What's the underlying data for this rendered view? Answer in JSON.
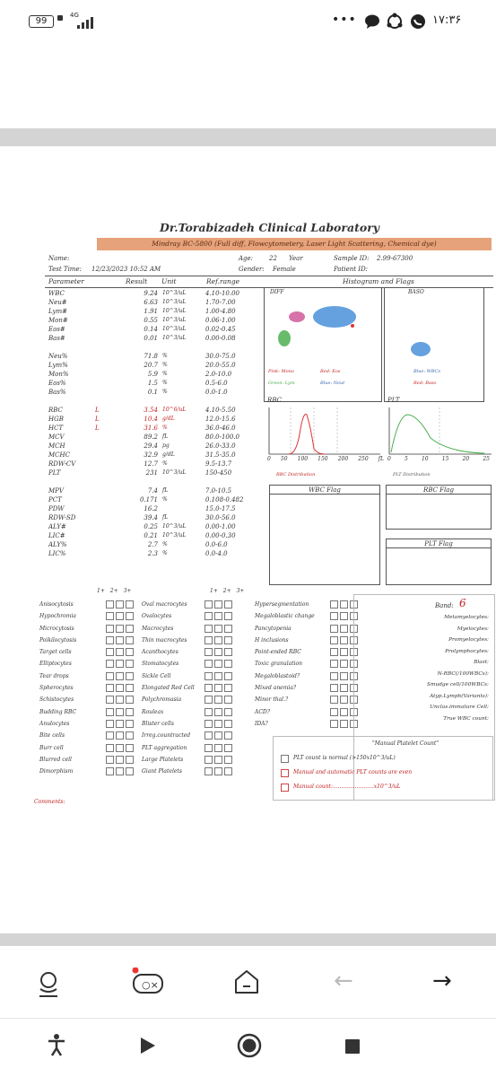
{
  "status_bar": {
    "battery": "99",
    "network": "4G",
    "dots": "•••",
    "time": "۱۷:۳۶"
  },
  "report": {
    "title": "Dr.Torabizadeh Clinical Laboratory",
    "subtitle": "Mindray BC-5800 (Full diff, Flowcytometery, Laser Light Scattering, Chemical dye)",
    "name_label": "Name:",
    "age_label": "Age:",
    "age_value": "22",
    "age_unit": "Year",
    "sample_label": "Sample ID:",
    "sample_value": "2.99-67300",
    "test_time_label": "Test Time:",
    "test_time_value": "12/23/2023 10:52 AM",
    "gender_label": "Gender:",
    "gender_value": "Female",
    "patient_label": "Patient ID:",
    "col_param": "Parameter",
    "col_result": "Result",
    "col_unit": "Unit",
    "col_ref": "Ref.range",
    "col_hist": "Histogram and Flags",
    "params": [
      {
        "name": "WBC",
        "flag": "",
        "value": "9.24",
        "unit": "10^3/uL",
        "ref": "4.10-10.00"
      },
      {
        "name": "Neu#",
        "flag": "",
        "value": "6.63",
        "unit": "10^3/uL",
        "ref": "1.70-7.00"
      },
      {
        "name": "Lym#",
        "flag": "",
        "value": "1.91",
        "unit": "10^3/uL",
        "ref": "1.00-4.80"
      },
      {
        "name": "Mon#",
        "flag": "",
        "value": "0.55",
        "unit": "10^3/uL",
        "ref": "0.06-1.00"
      },
      {
        "name": "Eos#",
        "flag": "",
        "value": "0.14",
        "unit": "10^3/uL",
        "ref": "0.02-0.45"
      },
      {
        "name": "Bas#",
        "flag": "",
        "value": "0.01",
        "unit": "10^3/uL",
        "ref": "0.00-0.08"
      },
      {
        "name": "",
        "flag": "",
        "value": "",
        "unit": "",
        "ref": ""
      },
      {
        "name": "Neu%",
        "flag": "",
        "value": "71.8",
        "unit": "%",
        "ref": "30.0-75.0"
      },
      {
        "name": "Lym%",
        "flag": "",
        "value": "20.7",
        "unit": "%",
        "ref": "20.0-55.0"
      },
      {
        "name": "Mon%",
        "flag": "",
        "value": "5.9",
        "unit": "%",
        "ref": "2.0-10.0"
      },
      {
        "name": "Eos%",
        "flag": "",
        "value": "1.5",
        "unit": "%",
        "ref": "0.5-6.0"
      },
      {
        "name": "Bas%",
        "flag": "",
        "value": "0.1",
        "unit": "%",
        "ref": "0.0-1.0"
      },
      {
        "name": "",
        "flag": "",
        "value": "",
        "unit": "",
        "ref": ""
      },
      {
        "name": "RBC",
        "flag": "L",
        "value": "3.54",
        "unit": "10^6/uL",
        "ref": "4.10-5.50"
      },
      {
        "name": "HGB",
        "flag": "L",
        "value": "10.4",
        "unit": "g/dL",
        "ref": "12.0-15.6"
      },
      {
        "name": "HCT",
        "flag": "L",
        "value": "31.6",
        "unit": "%",
        "ref": "36.0-46.0"
      },
      {
        "name": "MCV",
        "flag": "",
        "value": "89.2",
        "unit": "fL",
        "ref": "80.0-100.0"
      },
      {
        "name": "MCH",
        "flag": "",
        "value": "29.4",
        "unit": "pg",
        "ref": "26.0-33.0"
      },
      {
        "name": "MCHC",
        "flag": "",
        "value": "32.9",
        "unit": "g/dL",
        "ref": "31.5-35.0"
      },
      {
        "name": "RDW-CV",
        "flag": "",
        "value": "12.7",
        "unit": "%",
        "ref": "9.5-13.7"
      },
      {
        "name": "PLT",
        "flag": "",
        "value": "231",
        "unit": "10^3/uL",
        "ref": "150-450"
      },
      {
        "name": "",
        "flag": "",
        "value": "",
        "unit": "",
        "ref": ""
      },
      {
        "name": "MPV",
        "flag": "",
        "value": "7.4",
        "unit": "fL",
        "ref": "7.0-10.5"
      },
      {
        "name": "PCT",
        "flag": "",
        "value": "0.171",
        "unit": "%",
        "ref": "0.108-0.482"
      },
      {
        "name": "PDW",
        "flag": "",
        "value": "16.2",
        "unit": "",
        "ref": "15.0-17.5"
      },
      {
        "name": "RDW-SD",
        "flag": "",
        "value": "39.4",
        "unit": "fL",
        "ref": "30.0-56.0"
      },
      {
        "name": "ALY#",
        "flag": "",
        "value": "0.25",
        "unit": "10^3/uL",
        "ref": "0.00-1.00"
      },
      {
        "name": "LIC#",
        "flag": "",
        "value": "0.21",
        "unit": "10^3/uL",
        "ref": "0.00-0.30"
      },
      {
        "name": "ALY%",
        "flag": "",
        "value": "2.7",
        "unit": "%",
        "ref": "0.0-6.0"
      },
      {
        "name": "LIC%",
        "flag": "",
        "value": "2.3",
        "unit": "%",
        "ref": "0.0-4.0"
      }
    ],
    "diff_label": "DIFF",
    "baso_label": "BASO",
    "legend": {
      "pink": "Pink: Mono",
      "red": "Red: Eos",
      "blue": "Blue: WBCs",
      "green": "Green: Lym",
      "blue2": "Blue: Neut",
      "red2": "Red: Baso"
    },
    "rbc_label": "RBC",
    "plt_label": "PLT",
    "rbc_axis": [
      "0",
      "50",
      "100",
      "150",
      "200",
      "250",
      "fL"
    ],
    "plt_axis": [
      "0",
      "5",
      "10",
      "15",
      "20",
      "25"
    ],
    "rbc_dist": "RBC Distribution",
    "plt_dist": "PLT Distribution",
    "wbc_flag": "WBC Flag",
    "rbc_flag": "RBC Flag",
    "plt_flag": "PLT Flag",
    "grade_headers": [
      "1+",
      "2+",
      "3+"
    ],
    "morph_col1": [
      "Anisocytosis",
      "Hypochromia",
      "Microcytosis",
      "Poikilocytosis",
      "Target cells",
      "Elliptocytes",
      "Tear drops",
      "Spherocytes",
      "Schistocytes",
      "Budding RBC",
      "Anulocytes",
      "Bite cells",
      "Burr cell",
      "Blurred cell",
      "Dimorphism"
    ],
    "morph_col2": [
      "Oval macrocytes",
      "Ovalocytes",
      "Macrocytes",
      "Thin macrocytes",
      "Acanthocytes",
      "Stomatocytes",
      "Sickle Cell",
      "Elongated Red Cell",
      "Polychromasia",
      "Rouleax",
      "Blister cells",
      "Irreg.countracted",
      "PLT aggregation",
      "Large Platelets",
      "Giant Platelets"
    ],
    "morph_col3": [
      "Hypersegmentation",
      "Megaloblastic change",
      "Pancytopenia",
      "H inclusions",
      "Point-ended RBC",
      "Toxic granulation",
      "Megaloblastoid?",
      "Mixed anemia?",
      "Minor thal.?",
      "ACD?",
      "IDA?"
    ],
    "band_label": "Band:",
    "band_value": "6",
    "right_list": [
      "Metamyelocytes:",
      "Myelocytes:",
      "Promyelocytes:",
      "Prolymphocytes:",
      "Blast:",
      "N-RBC(/100WBCs):",
      "Smudge cell/100WBCs:",
      "Atyp.Lymph(Variants):",
      "Unclas.immature Cell:",
      "True WBC count:"
    ],
    "manual_title": "\"Manual Platelet Count\"",
    "plt_normal": "PLT count is normal (>150x10^3/uL)",
    "manual_auto": "Manual and automatic PLT counts are even",
    "manual_count": "Manual count:........................x10^3/uL",
    "comments": "Comments:"
  },
  "nav": {
    "forward": "→",
    "back": "←"
  }
}
